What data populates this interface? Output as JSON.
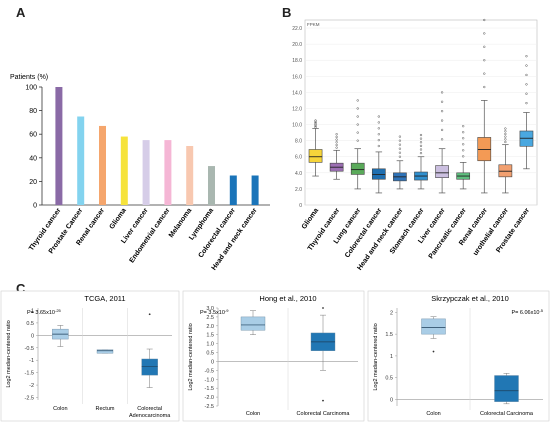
{
  "panel_labels": {
    "a": "A",
    "b": "B",
    "c": "C"
  },
  "chart_data": [
    {
      "id": "A",
      "type": "bar",
      "ylabel": "Patients (%)",
      "ylim": [
        0,
        100
      ],
      "yticks": [
        0,
        20,
        40,
        60,
        80,
        100
      ],
      "grid": false,
      "categories": [
        "Thyroid cancer",
        "Prostate Cancer",
        "Renal cancer",
        "Glioma",
        "Liver cancer",
        "Endometrial cancer",
        "Melanoma",
        "Lymphoma",
        "Colorectal cancer",
        "Head and neck cancer"
      ],
      "values": [
        100,
        75,
        67,
        58,
        55,
        55,
        50,
        33,
        25,
        25
      ],
      "colors": [
        "#8a6aa6",
        "#83d3ef",
        "#f5a66d",
        "#f6e33b",
        "#d6cde8",
        "#f5b6d5",
        "#f8c8b0",
        "#a9b7b0",
        "#1a74b9",
        "#1a74b9"
      ]
    },
    {
      "id": "B",
      "type": "box",
      "ylabel": "FPKM",
      "ylim": [
        0,
        23
      ],
      "yticks": [
        0,
        2,
        4,
        6,
        8,
        10,
        12,
        14,
        16,
        18,
        20,
        22
      ],
      "ytick_labels": [
        "0",
        "2.0",
        "4.0",
        "6.0",
        "8.0",
        "10.0",
        "12.0",
        "14.0",
        "16.0",
        "18.0",
        "20.0",
        "22.0"
      ],
      "categories": [
        "Glioma",
        "Thyroid cancer",
        "Lung cancer",
        "Colorectal cancer",
        "Head and neck cancer",
        "Stomach cancer",
        "Liver cancer",
        "Pancreatic cancer",
        "Renal cancer",
        "urothelial cancer",
        "Prostate cancer"
      ],
      "boxes": [
        {
          "q1": 5.3,
          "median": 6.0,
          "q3": 6.9,
          "whisker_low": 3.6,
          "whisker_high": 9.5,
          "outlier_max": 10.5,
          "color": "#f6d53a"
        },
        {
          "q1": 4.2,
          "median": 4.7,
          "q3": 5.2,
          "whisker_low": 3.2,
          "whisker_high": 6.8,
          "outlier_max": 8.8,
          "color": "#9c6fb3"
        },
        {
          "q1": 3.8,
          "median": 4.4,
          "q3": 5.2,
          "whisker_low": 2.0,
          "whisker_high": 7.0,
          "outlier_max": 13.0,
          "color": "#5aaa5a"
        },
        {
          "q1": 3.2,
          "median": 3.8,
          "q3": 4.5,
          "whisker_low": 1.5,
          "whisker_high": 6.6,
          "outlier_max": 11.0,
          "color": "#1f6fb0"
        },
        {
          "q1": 3.0,
          "median": 3.5,
          "q3": 4.0,
          "whisker_low": 2.0,
          "whisker_high": 5.5,
          "outlier_max": 8.5,
          "color": "#2f73b8"
        },
        {
          "q1": 3.1,
          "median": 3.6,
          "q3": 4.1,
          "whisker_low": 2.0,
          "whisker_high": 6.0,
          "outlier_max": 8.7,
          "color": "#2f8fce"
        },
        {
          "q1": 3.4,
          "median": 4.0,
          "q3": 4.9,
          "whisker_low": 1.5,
          "whisker_high": 7.0,
          "outlier_max": 14.0,
          "color": "#cbbfe0"
        },
        {
          "q1": 3.2,
          "median": 3.6,
          "q3": 4.0,
          "whisker_low": 2.0,
          "whisker_high": 5.3,
          "outlier_max": 9.8,
          "color": "#5fbf7f"
        },
        {
          "q1": 5.5,
          "median": 6.9,
          "q3": 8.4,
          "whisker_low": 1.5,
          "whisker_high": 13.0,
          "outlier_max": 23.0,
          "color": "#f39a55"
        },
        {
          "q1": 3.5,
          "median": 4.2,
          "q3": 5.0,
          "whisker_low": 1.5,
          "whisker_high": 7.5,
          "outlier_max": 9.5,
          "color": "#f2a070"
        },
        {
          "q1": 7.3,
          "median": 8.3,
          "q3": 9.2,
          "whisker_low": 4.5,
          "whisker_high": 11.5,
          "outlier_max": 18.5,
          "color": "#4aa8e0"
        }
      ]
    },
    {
      "id": "C1",
      "type": "box",
      "title": "TCGA, 2011",
      "annotation": "P= 3.65x10",
      "annotation_exp": "-25",
      "ylabel": "Log2 median-centered ratio",
      "ylim": [
        -2.6,
        1.1
      ],
      "yticks": [
        1,
        0.5,
        0,
        -0.5,
        -1,
        -1.5,
        -2,
        -2.5
      ],
      "ytick_labels": [
        "1",
        "0.5",
        "0",
        "-0.5",
        "-1",
        "-1.5",
        "-2",
        "-2.5"
      ],
      "categories": [
        "Colon",
        "Rectum",
        "Colorectal Adenocarcinoma"
      ],
      "boxes": [
        {
          "q1": -0.15,
          "median": 0.05,
          "q3": 0.25,
          "whisker_low": -0.45,
          "whisker_high": 0.4,
          "color": "#a9cde6"
        },
        {
          "q1": -0.72,
          "median": -0.62,
          "q3": -0.58,
          "whisker_low": -0.72,
          "whisker_high": -0.58,
          "color": "#a9cde6"
        },
        {
          "q1": -1.6,
          "median": -1.25,
          "q3": -0.95,
          "whisker_low": -2.1,
          "whisker_high": -0.55,
          "outlier_max": 0.85,
          "color": "#2177b4"
        }
      ]
    },
    {
      "id": "C2",
      "type": "box",
      "title": "Hong et al., 2010",
      "annotation": "P= 3.5x10",
      "annotation_exp": "-9",
      "ylabel": "Log2 median-centered ratio",
      "ylim": [
        -2.5,
        3.0
      ],
      "yticks": [
        3,
        2.5,
        2,
        1.5,
        1,
        0.5,
        0,
        -0.5,
        -1,
        -1.5,
        -2,
        -2.5
      ],
      "ytick_labels": [
        "3.0",
        "2.5",
        "2.0",
        "1.5",
        "1.0",
        "0.5",
        "0",
        "-0.5",
        "-1.0",
        "-1.5",
        "-2.0",
        "-2.5"
      ],
      "categories": [
        "Colon",
        "Colorectal Carcinoma"
      ],
      "boxes": [
        {
          "q1": 1.75,
          "median": 2.05,
          "q3": 2.5,
          "whisker_low": 1.5,
          "whisker_high": 2.85,
          "color": "#a9cde6"
        },
        {
          "q1": 0.6,
          "median": 1.1,
          "q3": 1.6,
          "whisker_low": -0.5,
          "whisker_high": 2.6,
          "outlier_min": -2.2,
          "outlier_max": 3.0,
          "color": "#2177b4"
        }
      ]
    },
    {
      "id": "C3",
      "type": "box",
      "title": "Skrzypczak et al., 2010",
      "annotation": "P= 6.06x10",
      "annotation_exp": "-5",
      "ylabel": "Log2 median-centered ratio",
      "ylim": [
        -0.15,
        2.1
      ],
      "yticks": [
        2,
        1.5,
        1,
        0.5,
        0
      ],
      "ytick_labels": [
        "2",
        "1.5",
        "1",
        "0.5",
        "0"
      ],
      "categories": [
        "Colon",
        "Colorectal Carcinoma"
      ],
      "boxes": [
        {
          "q1": 1.5,
          "median": 1.65,
          "q3": 1.85,
          "whisker_low": 1.4,
          "whisker_high": 1.9,
          "outlier_min": 1.1,
          "color": "#a9cde6"
        },
        {
          "q1": -0.05,
          "median": 0.2,
          "q3": 0.55,
          "whisker_low": -0.1,
          "whisker_high": 0.6,
          "color": "#2177b4"
        }
      ]
    }
  ]
}
